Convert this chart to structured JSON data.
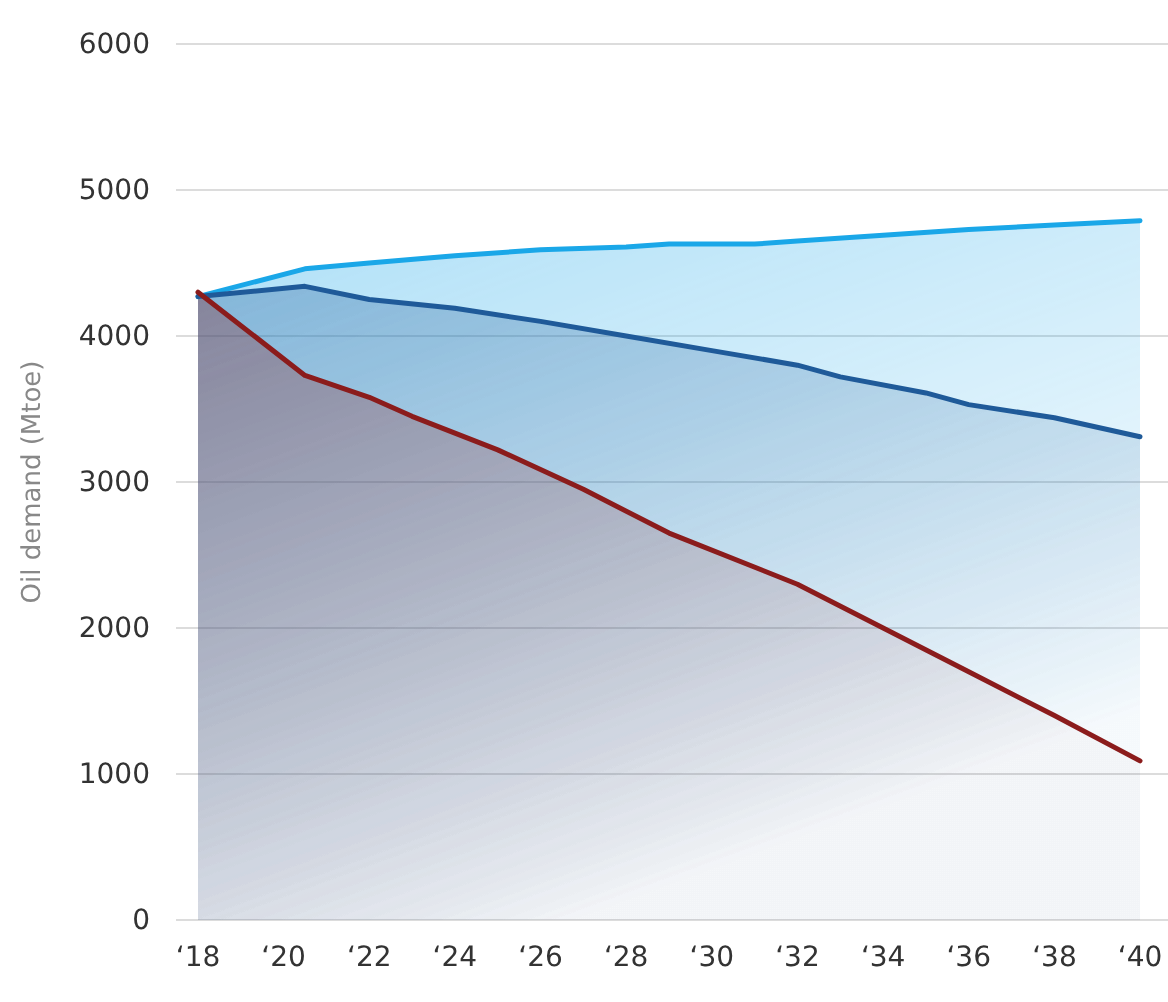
{
  "chart_data": {
    "type": "area",
    "ylabel": "Oil demand (Mtoe)",
    "grid": "y",
    "marker": "none",
    "line_style": "solid",
    "xlim": [
      "2018",
      "2040"
    ],
    "ylim": [
      0,
      6000
    ],
    "yticks": [
      0,
      1000,
      2000,
      3000,
      4000,
      5000,
      6000
    ],
    "xticks": [
      {
        "value": "2018",
        "label": "‘18"
      },
      {
        "value": "2020",
        "label": "‘20"
      },
      {
        "value": "2022",
        "label": "‘22"
      },
      {
        "value": "2024",
        "label": "‘24"
      },
      {
        "value": "2026",
        "label": "‘26"
      },
      {
        "value": "2028",
        "label": "‘28"
      },
      {
        "value": "2030",
        "label": "‘30"
      },
      {
        "value": "2032",
        "label": "‘32"
      },
      {
        "value": "2034",
        "label": "‘34"
      },
      {
        "value": "2036",
        "label": "‘36"
      },
      {
        "value": "2038",
        "label": "‘38"
      },
      {
        "value": "2040",
        "label": "‘40"
      }
    ],
    "series": [
      {
        "color": "#1aa7e8",
        "x": [
          "2018",
          "2020-07",
          "2022",
          "2024",
          "2026",
          "2028",
          "2029",
          "2031",
          "2032",
          "2034",
          "2036",
          "2038",
          "2040"
        ],
        "values": [
          4270,
          4460,
          4500,
          4550,
          4590,
          4610,
          4630,
          4630,
          4650,
          4690,
          4730,
          4760,
          4790
        ]
      },
      {
        "color": "#1f5a99",
        "x": [
          "2018",
          "2020-07",
          "2022",
          "2024",
          "2026",
          "2028",
          "2030",
          "2032",
          "2033",
          "2035",
          "2036",
          "2038",
          "2040"
        ],
        "values": [
          4270,
          4340,
          4250,
          4190,
          4100,
          4000,
          3900,
          3800,
          3720,
          3610,
          3530,
          3440,
          3310
        ]
      },
      {
        "color": "#8b1c1c",
        "x": [
          "2018",
          "2020-07",
          "2022",
          "2023",
          "2025",
          "2027",
          "2029",
          "2032",
          "2034",
          "2036",
          "2038",
          "2040"
        ],
        "values": [
          4300,
          3730,
          3580,
          3450,
          3220,
          2950,
          2650,
          2300,
          2000,
          1700,
          1400,
          1090
        ]
      }
    ]
  }
}
